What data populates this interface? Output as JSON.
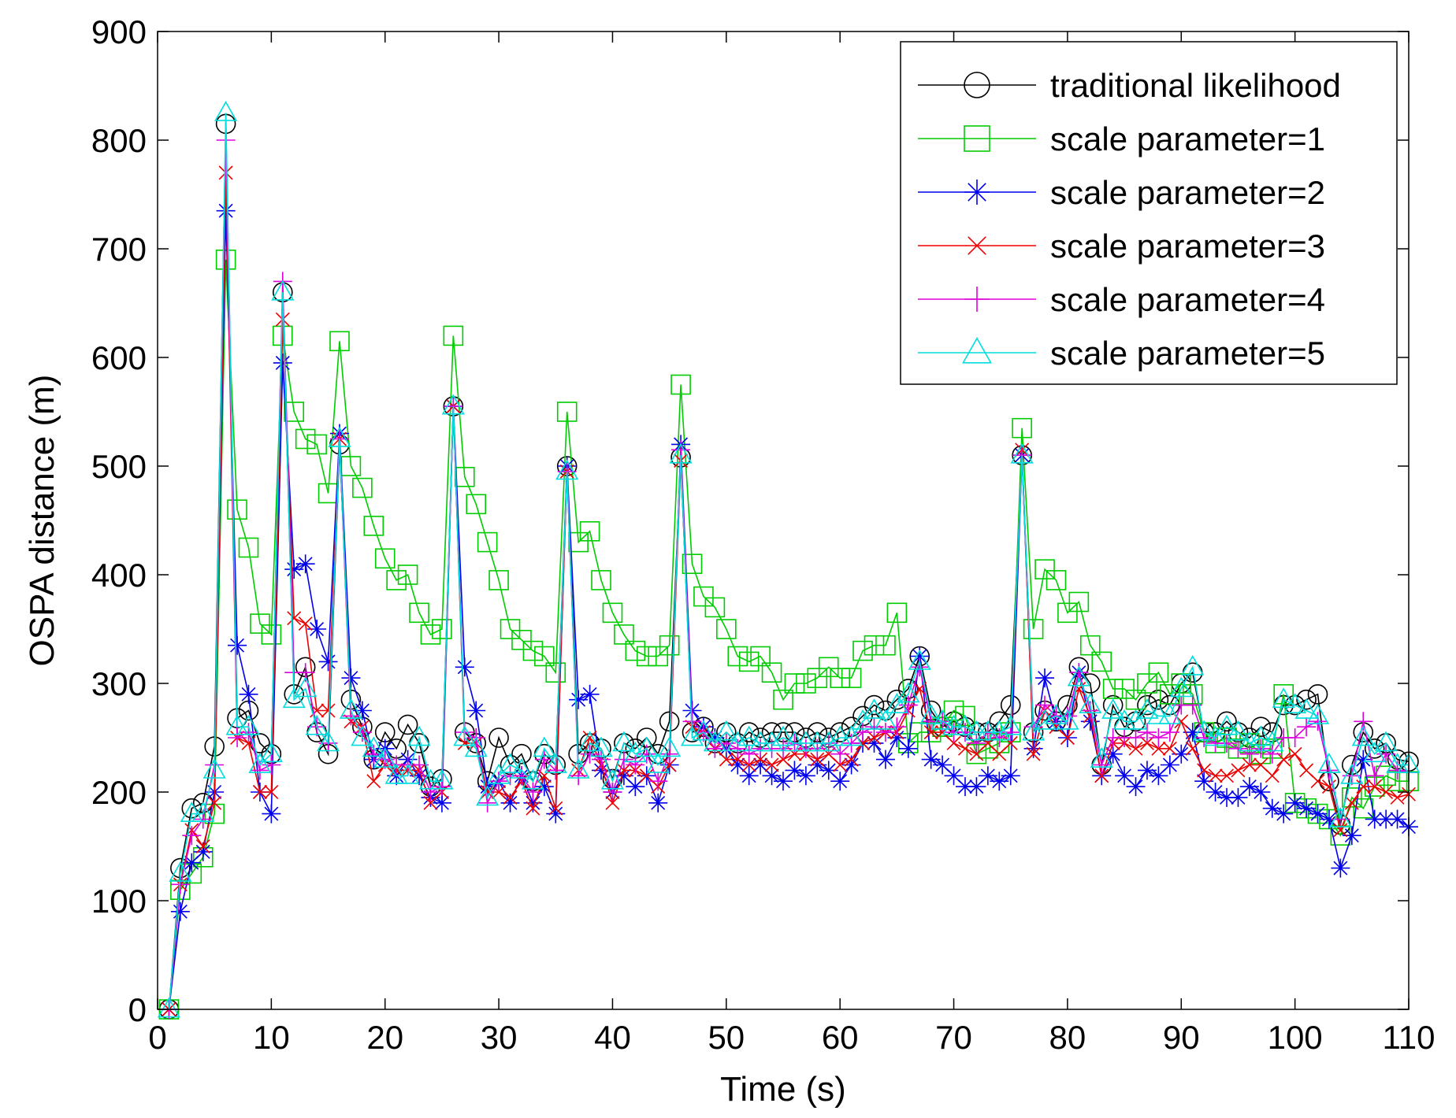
{
  "chart_data": {
    "type": "line",
    "title": "",
    "xlabel": "Time (s)",
    "ylabel": "OSPA distance (m)",
    "xlim": [
      0,
      110
    ],
    "ylim": [
      0,
      900
    ],
    "xticks": [
      0,
      10,
      20,
      30,
      40,
      50,
      60,
      70,
      80,
      90,
      100,
      110
    ],
    "yticks": [
      0,
      100,
      200,
      300,
      400,
      500,
      600,
      700,
      800,
      900
    ],
    "xtick_labels": [
      "0",
      "10",
      "20",
      "30",
      "40",
      "50",
      "60",
      "70",
      "80",
      "90",
      "100",
      "110"
    ],
    "ytick_labels": [
      "0",
      "100",
      "200",
      "300",
      "400",
      "500",
      "600",
      "700",
      "800",
      "900"
    ],
    "grid": false,
    "legend_position": "top-right",
    "x": [
      1,
      2,
      3,
      4,
      5,
      6,
      7,
      8,
      9,
      10,
      11,
      12,
      13,
      14,
      15,
      16,
      17,
      18,
      19,
      20,
      21,
      22,
      23,
      24,
      25,
      26,
      27,
      28,
      29,
      30,
      31,
      32,
      33,
      34,
      35,
      36,
      37,
      38,
      39,
      40,
      41,
      42,
      43,
      44,
      45,
      46,
      47,
      48,
      49,
      50,
      51,
      52,
      53,
      54,
      55,
      56,
      57,
      58,
      59,
      60,
      61,
      62,
      63,
      64,
      65,
      66,
      67,
      68,
      69,
      70,
      71,
      72,
      73,
      74,
      75,
      76,
      77,
      78,
      79,
      80,
      81,
      82,
      83,
      84,
      85,
      86,
      87,
      88,
      89,
      90,
      91,
      92,
      93,
      94,
      95,
      96,
      97,
      98,
      99,
      100,
      101,
      102,
      103,
      104,
      105,
      106,
      107,
      108,
      109,
      110
    ],
    "series": [
      {
        "name": "traditional likelihood",
        "color": "#000000",
        "marker": "circle",
        "values": [
          0,
          130,
          185,
          190,
          242,
          815,
          268,
          275,
          245,
          235,
          660,
          290,
          315,
          255,
          235,
          520,
          285,
          260,
          230,
          255,
          240,
          262,
          245,
          205,
          212,
          555,
          255,
          245,
          210,
          250,
          225,
          235,
          210,
          235,
          225,
          500,
          235,
          245,
          240,
          212,
          245,
          240,
          250,
          235,
          265,
          508,
          255,
          260,
          245,
          255,
          245,
          255,
          250,
          255,
          255,
          255,
          250,
          255,
          250,
          255,
          260,
          270,
          280,
          275,
          285,
          295,
          325,
          275,
          260,
          265,
          260,
          255,
          255,
          265,
          280,
          510,
          255,
          275,
          265,
          280,
          315,
          300,
          225,
          280,
          260,
          265,
          280,
          285,
          280,
          300,
          310,
          255,
          255,
          265,
          255,
          250,
          260,
          255,
          280,
          280,
          285,
          290,
          210,
          170,
          225,
          255,
          240,
          245,
          230,
          228
        ]
      },
      {
        "name": "scale parameter=1",
        "color": "#00cc00",
        "marker": "square",
        "values": [
          0,
          110,
          125,
          140,
          180,
          690,
          460,
          425,
          355,
          345,
          620,
          550,
          525,
          520,
          475,
          615,
          500,
          480,
          445,
          415,
          395,
          400,
          365,
          345,
          350,
          620,
          490,
          465,
          430,
          395,
          350,
          340,
          330,
          325,
          310,
          550,
          430,
          440,
          395,
          365,
          345,
          330,
          325,
          325,
          335,
          575,
          410,
          380,
          370,
          350,
          325,
          320,
          325,
          310,
          285,
          300,
          300,
          305,
          315,
          305,
          305,
          330,
          335,
          335,
          365,
          245,
          255,
          255,
          260,
          275,
          270,
          235,
          240,
          245,
          255,
          535,
          350,
          405,
          395,
          365,
          375,
          335,
          320,
          295,
          295,
          285,
          300,
          310,
          290,
          300,
          290,
          255,
          245,
          250,
          240,
          245,
          235,
          240,
          290,
          190,
          185,
          180,
          175,
          160,
          195,
          185,
          205,
          215,
          210,
          210
        ]
      },
      {
        "name": "scale parameter=2",
        "color": "#0000ee",
        "marker": "asterisk",
        "values": [
          0,
          90,
          135,
          145,
          200,
          735,
          335,
          290,
          200,
          180,
          595,
          405,
          410,
          350,
          320,
          530,
          305,
          275,
          230,
          240,
          215,
          230,
          215,
          195,
          190,
          555,
          315,
          275,
          205,
          210,
          190,
          215,
          190,
          205,
          180,
          500,
          285,
          290,
          220,
          200,
          215,
          205,
          215,
          190,
          225,
          520,
          275,
          260,
          250,
          240,
          225,
          215,
          225,
          215,
          210,
          220,
          215,
          225,
          220,
          210,
          225,
          245,
          245,
          230,
          250,
          240,
          325,
          230,
          225,
          215,
          205,
          205,
          215,
          210,
          215,
          510,
          240,
          305,
          265,
          250,
          310,
          265,
          215,
          235,
          215,
          205,
          220,
          215,
          225,
          235,
          255,
          210,
          200,
          195,
          195,
          205,
          200,
          185,
          180,
          190,
          185,
          180,
          175,
          130,
          160,
          230,
          175,
          175,
          175,
          168
        ]
      },
      {
        "name": "scale parameter=3",
        "color": "#ee0000",
        "marker": "cross",
        "values": [
          0,
          115,
          165,
          150,
          190,
          770,
          250,
          245,
          200,
          200,
          635,
          360,
          355,
          275,
          275,
          525,
          265,
          260,
          210,
          225,
          220,
          220,
          220,
          190,
          200,
          555,
          245,
          245,
          200,
          200,
          195,
          210,
          185,
          215,
          185,
          495,
          220,
          250,
          225,
          190,
          220,
          220,
          215,
          205,
          225,
          505,
          260,
          255,
          240,
          230,
          230,
          225,
          230,
          225,
          230,
          235,
          235,
          230,
          235,
          225,
          230,
          245,
          250,
          255,
          255,
          275,
          295,
          255,
          255,
          245,
          240,
          235,
          245,
          235,
          245,
          515,
          235,
          275,
          260,
          250,
          295,
          270,
          215,
          245,
          245,
          240,
          245,
          240,
          240,
          265,
          240,
          220,
          215,
          215,
          220,
          225,
          225,
          215,
          230,
          235,
          220,
          210,
          205,
          165,
          190,
          205,
          205,
          200,
          195,
          198
        ]
      },
      {
        "name": "scale parameter=4",
        "color": "#dd00dd",
        "marker": "plus",
        "values": [
          0,
          115,
          160,
          175,
          225,
          800,
          250,
          255,
          220,
          225,
          670,
          310,
          310,
          260,
          245,
          525,
          270,
          255,
          235,
          230,
          225,
          225,
          225,
          200,
          205,
          555,
          255,
          250,
          190,
          210,
          215,
          215,
          200,
          230,
          220,
          495,
          215,
          235,
          230,
          200,
          230,
          225,
          235,
          210,
          235,
          515,
          265,
          255,
          240,
          245,
          240,
          235,
          240,
          240,
          240,
          245,
          240,
          240,
          245,
          235,
          245,
          255,
          260,
          255,
          260,
          280,
          315,
          265,
          265,
          255,
          255,
          245,
          255,
          250,
          255,
          510,
          260,
          280,
          270,
          270,
          310,
          275,
          225,
          250,
          250,
          250,
          255,
          250,
          255,
          280,
          280,
          250,
          245,
          245,
          240,
          235,
          240,
          235,
          250,
          250,
          260,
          265,
          220,
          175,
          215,
          265,
          215,
          235,
          220,
          218
        ]
      },
      {
        "name": "scale parameter=5",
        "color": "#00dddd",
        "marker": "triangle",
        "values": [
          0,
          125,
          180,
          180,
          220,
          825,
          260,
          260,
          225,
          235,
          660,
          285,
          295,
          260,
          245,
          525,
          275,
          250,
          240,
          230,
          215,
          215,
          250,
          210,
          210,
          555,
          250,
          240,
          195,
          215,
          225,
          220,
          210,
          240,
          225,
          495,
          220,
          245,
          240,
          210,
          245,
          235,
          240,
          225,
          240,
          510,
          250,
          255,
          245,
          255,
          245,
          250,
          245,
          245,
          250,
          245,
          245,
          245,
          245,
          250,
          250,
          265,
          275,
          265,
          280,
          290,
          320,
          270,
          265,
          260,
          260,
          255,
          255,
          255,
          260,
          510,
          255,
          265,
          270,
          265,
          305,
          280,
          230,
          275,
          265,
          265,
          275,
          270,
          270,
          295,
          315,
          255,
          250,
          260,
          255,
          245,
          250,
          245,
          285,
          280,
          275,
          270,
          225,
          175,
          215,
          250,
          235,
          245,
          225,
          225
        ]
      }
    ]
  }
}
